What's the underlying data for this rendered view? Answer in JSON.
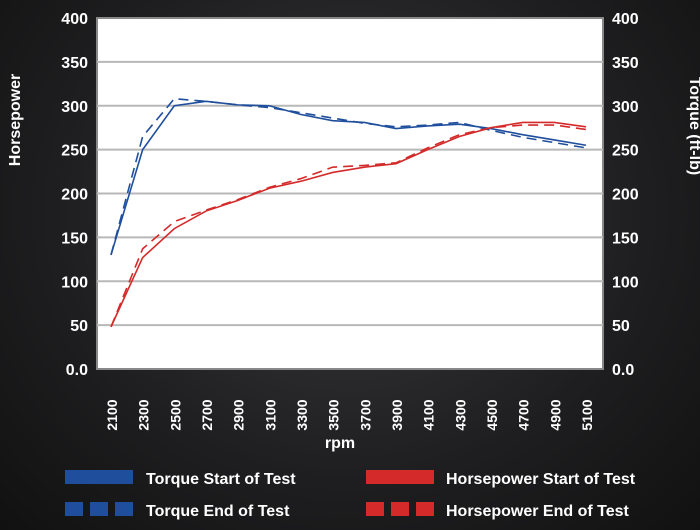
{
  "chart_data": {
    "type": "line",
    "title": "",
    "xlabel": "rpm",
    "ylabel_left": "Horsepower",
    "ylabel_right": "Torque (ft-lb)",
    "ylim": [
      0,
      400
    ],
    "y_ticks": [
      "0.0",
      "50",
      "100",
      "150",
      "200",
      "250",
      "300",
      "350",
      "400"
    ],
    "y_tick_values": [
      0,
      50,
      100,
      150,
      200,
      250,
      300,
      350,
      400
    ],
    "grid": true,
    "legend_placement": "bottom",
    "categories": [
      "2100",
      "2300",
      "2500",
      "2700",
      "2900",
      "3100",
      "3300",
      "3500",
      "3700",
      "3900",
      "4100",
      "4300",
      "4500",
      "4700",
      "4900",
      "5100"
    ],
    "series": [
      {
        "name": "Torque Start of Test",
        "color": "#1f4e9c",
        "style": "solid",
        "axis": "right",
        "values": [
          130,
          250,
          300,
          305,
          301,
          300,
          290,
          283,
          281,
          274,
          277,
          279,
          274,
          267,
          261,
          255
        ]
      },
      {
        "name": "Torque End of Test",
        "color": "#1f4e9c",
        "style": "dashed",
        "axis": "right",
        "values": [
          130,
          265,
          308,
          305,
          301,
          298,
          292,
          286,
          280,
          276,
          278,
          281,
          272,
          264,
          258,
          252
        ]
      },
      {
        "name": "Horsepower Start of Test",
        "color": "#d42a2a",
        "style": "solid",
        "axis": "left",
        "values": [
          48,
          127,
          160,
          180,
          192,
          206,
          214,
          224,
          230,
          234,
          250,
          265,
          275,
          281,
          281,
          276
        ]
      },
      {
        "name": "Horsepower End of Test",
        "color": "#d42a2a",
        "style": "dashed",
        "axis": "left",
        "values": [
          48,
          137,
          168,
          181,
          193,
          207,
          217,
          230,
          232,
          235,
          252,
          267,
          275,
          278,
          278,
          273
        ]
      }
    ]
  }
}
